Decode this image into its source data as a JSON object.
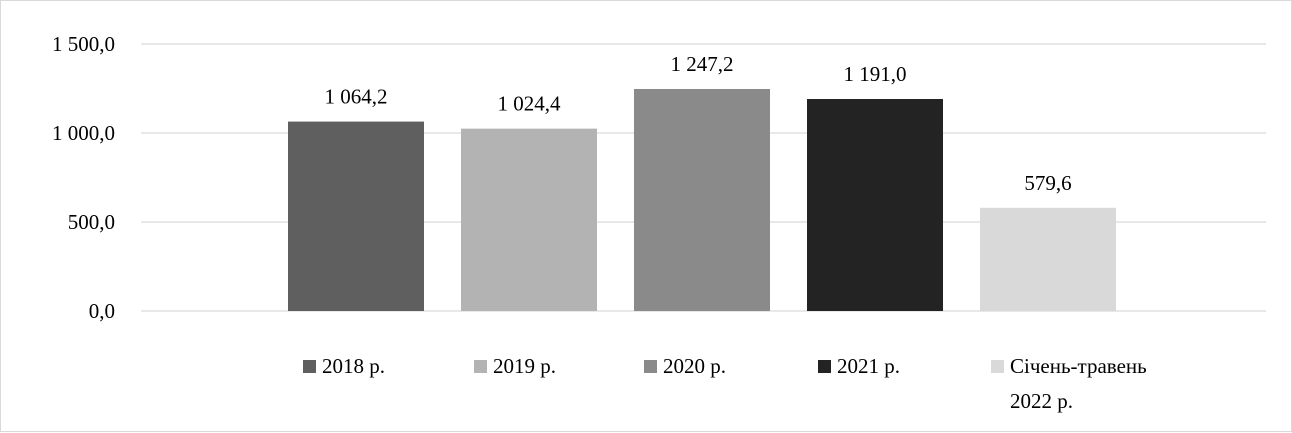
{
  "chart_data": {
    "type": "bar",
    "title": "",
    "xlabel": "",
    "ylabel": "",
    "ylim": [
      0,
      1500
    ],
    "yticks": [
      {
        "value": 0,
        "label": "0,0"
      },
      {
        "value": 500,
        "label": "500,0"
      },
      {
        "value": 1000,
        "label": "1 000,0"
      },
      {
        "value": 1500,
        "label": "1 500,0"
      }
    ],
    "grid": true,
    "legend_position": "bottom",
    "categories": [
      "2018 р.",
      "2019 р.",
      "2020 р.",
      "2021 р.",
      "Січень-травень 2022 р."
    ],
    "legend_lines": [
      [
        "2018 р."
      ],
      [
        "2019 р."
      ],
      [
        "2020 р."
      ],
      [
        "2021 р."
      ],
      [
        "Січень-травень",
        "2022 р."
      ]
    ],
    "values": [
      1064.2,
      1024.4,
      1247.2,
      1191.0,
      579.6
    ],
    "value_labels": [
      "1 064,2",
      "1 024,4",
      "1 247,2",
      "1 191,0",
      "579,6"
    ],
    "colors": [
      "#5f5f5f",
      "#b3b3b3",
      "#8a8a8a",
      "#232323",
      "#d9d9d9"
    ],
    "gridline_color": "#d9d9d9"
  }
}
